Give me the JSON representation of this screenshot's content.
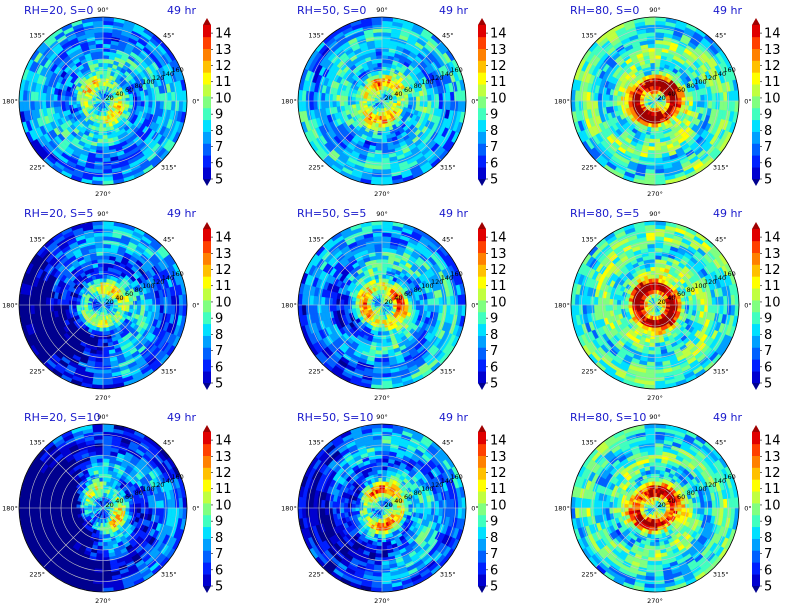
{
  "figure": {
    "time_label": "49 hr",
    "colorbar": {
      "ticks": [
        "5",
        "6",
        "7",
        "8",
        "9",
        "10",
        "11",
        "12",
        "13",
        "14"
      ],
      "min": 5,
      "max": 14.5,
      "colors": [
        "#00008f",
        "#0000d0",
        "#0020ff",
        "#0060ff",
        "#00a0ff",
        "#00e0ff",
        "#40ffbf",
        "#80ff80",
        "#c0ff40",
        "#ffff00",
        "#ffc000",
        "#ff8000",
        "#ff4000",
        "#e00000",
        "#a00000"
      ]
    },
    "polar_axes": {
      "angle_labels": [
        "90°",
        "45°",
        "0°",
        "315°",
        "270°",
        "225°",
        "180°",
        "135°"
      ],
      "radial_labels": [
        "20",
        "40",
        "60",
        "80",
        "100",
        "120",
        "140",
        "160"
      ]
    }
  },
  "chart_data": [
    {
      "type": "heatmap",
      "projection": "polar",
      "title": "RH=20, S=0",
      "time": "49 hr",
      "rlim": [
        0,
        160
      ],
      "colorbar_range": [
        5,
        14
      ]
    },
    {
      "type": "heatmap",
      "projection": "polar",
      "title": "RH=50, S=0",
      "time": "49 hr",
      "rlim": [
        0,
        160
      ],
      "colorbar_range": [
        5,
        14
      ]
    },
    {
      "type": "heatmap",
      "projection": "polar",
      "title": "RH=80, S=0",
      "time": "49 hr",
      "rlim": [
        0,
        160
      ],
      "colorbar_range": [
        5,
        14
      ]
    },
    {
      "type": "heatmap",
      "projection": "polar",
      "title": "RH=20, S=5",
      "time": "49 hr",
      "rlim": [
        0,
        160
      ],
      "colorbar_range": [
        5,
        14
      ]
    },
    {
      "type": "heatmap",
      "projection": "polar",
      "title": "RH=50, S=5",
      "time": "49 hr",
      "rlim": [
        0,
        160
      ],
      "colorbar_range": [
        5,
        14
      ]
    },
    {
      "type": "heatmap",
      "projection": "polar",
      "title": "RH=80, S=5",
      "time": "49 hr",
      "rlim": [
        0,
        160
      ],
      "colorbar_range": [
        5,
        14
      ]
    },
    {
      "type": "heatmap",
      "projection": "polar",
      "title": "RH=20, S=10",
      "time": "49 hr",
      "rlim": [
        0,
        160
      ],
      "colorbar_range": [
        5,
        14
      ]
    },
    {
      "type": "heatmap",
      "projection": "polar",
      "title": "RH=50, S=10",
      "time": "49 hr",
      "rlim": [
        0,
        160
      ],
      "colorbar_range": [
        5,
        14
      ]
    },
    {
      "type": "heatmap",
      "projection": "polar",
      "title": "RH=80, S=10",
      "time": "49 hr",
      "rlim": [
        0,
        160
      ],
      "colorbar_range": [
        5,
        14
      ]
    }
  ]
}
